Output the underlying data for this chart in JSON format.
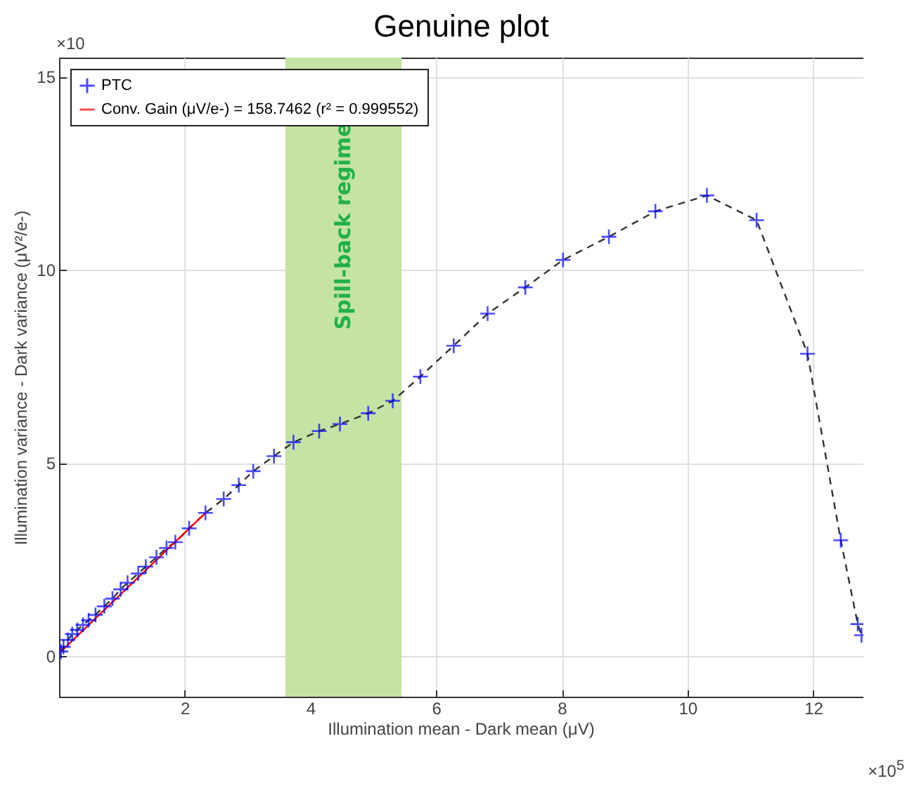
{
  "chart_data": {
    "type": "line",
    "title": "Genuine plot",
    "xlabel": "Illumination mean - Dark mean (μV)",
    "ylabel": "Illumination variance - Dark variance (μV²/e-)",
    "xlim": [
      0,
      12.8
    ],
    "ylim": [
      -1.05,
      15.5
    ],
    "xticks": [
      2,
      4,
      6,
      8,
      10,
      12
    ],
    "yticks": [
      0,
      5,
      10,
      15
    ],
    "grid": true,
    "legend": "top left",
    "bands": [
      {
        "axis": "x",
        "from": 3.6,
        "to": 5.45,
        "label": "Spill-back regime",
        "color": "#c5e3a5"
      }
    ],
    "annotations": [
      "×10",
      "×10$^{5}$"
    ],
    "series": [
      {
        "name": "PTC",
        "color": "#0000ff",
        "marker": "cross",
        "line_style": "dashed",
        "x": [
          0.03,
          0.07,
          0.14,
          0.21,
          0.29,
          0.38,
          0.47,
          0.58,
          0.72,
          0.85,
          0.98,
          1.09,
          1.26,
          1.38,
          1.55,
          1.71,
          1.85,
          2.07,
          2.33,
          2.62,
          2.86,
          3.09,
          3.42,
          3.73,
          4.14,
          4.47,
          4.92,
          5.31,
          5.75,
          6.28,
          6.82,
          7.42,
          8.02,
          8.75,
          9.49,
          10.31,
          11.1,
          11.91,
          12.44,
          12.71,
          12.77
        ],
        "values": [
          0.12,
          0.24,
          0.42,
          0.57,
          0.68,
          0.81,
          0.93,
          1.07,
          1.29,
          1.49,
          1.73,
          1.9,
          2.14,
          2.32,
          2.56,
          2.8,
          2.95,
          3.31,
          3.71,
          4.07,
          4.43,
          4.79,
          5.18,
          5.54,
          5.83,
          6.01,
          6.29,
          6.61,
          7.24,
          8.04,
          8.87,
          9.55,
          10.26,
          10.86,
          11.52,
          11.93,
          11.29,
          7.83,
          3.0,
          0.83,
          0.54
        ]
      },
      {
        "name": "Conv. Gain (μV/e-) = 158.7462 (r² = 0.999552)",
        "type": "line",
        "color": "#ff0000",
        "marker": "none",
        "line_style": "solid",
        "x": [
          0.03,
          2.33
        ],
        "values": [
          0.12,
          3.71
        ]
      }
    ]
  }
}
